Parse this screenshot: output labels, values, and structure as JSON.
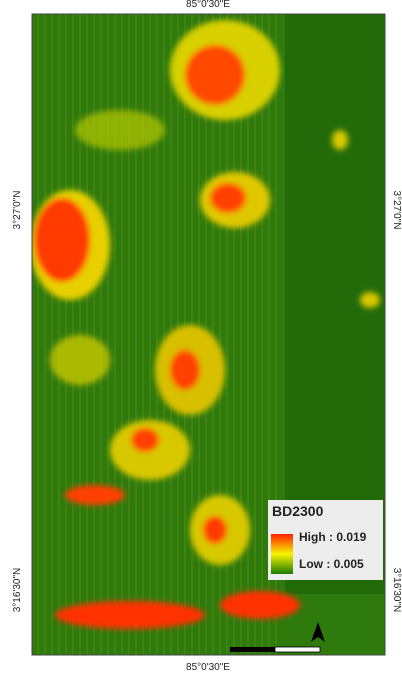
{
  "map": {
    "top_label": "85°0'30\"E",
    "bottom_label": "85°0'30\"E",
    "left_labels": [
      "3°27'0\"N",
      "3°16'30\"N"
    ],
    "right_labels": [
      "3°27'0\"N",
      "3°16'30\"N"
    ],
    "legend": {
      "title": "BD2300",
      "high": "High : 0.019",
      "low": "Low : 0.005"
    }
  }
}
